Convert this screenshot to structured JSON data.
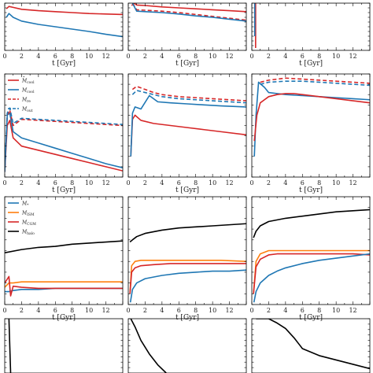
{
  "figure": {
    "xlabel_text": "t [Gyr]"
  },
  "colors": {
    "red": "#d62728",
    "blue": "#1f77b4",
    "orange": "#ff7f0e",
    "black": "#000000"
  },
  "chart_data": [
    {
      "type": "line",
      "panel": "r0c0",
      "xlim": [
        0,
        14
      ],
      "ylim": [
        0,
        1
      ],
      "xticks": [
        0,
        2,
        4,
        6,
        8,
        10,
        12
      ],
      "xlabel": "t [Gyr]",
      "series": [
        {
          "color": "red",
          "style": "solid",
          "x": [
            0.2,
            0.5,
            1,
            2,
            4,
            6,
            8,
            10,
            12,
            14
          ],
          "y": [
            0.88,
            0.93,
            0.91,
            0.87,
            0.84,
            0.82,
            0.8,
            0.78,
            0.77,
            0.76
          ]
        },
        {
          "color": "blue",
          "style": "solid",
          "x": [
            0.2,
            0.5,
            1,
            2,
            4,
            6,
            8,
            10,
            12,
            14
          ],
          "y": [
            0.7,
            0.78,
            0.7,
            0.62,
            0.55,
            0.5,
            0.45,
            0.4,
            0.34,
            0.29
          ]
        }
      ]
    },
    {
      "type": "line",
      "panel": "r0c1",
      "xlim": [
        0,
        14
      ],
      "ylim": [
        0,
        1
      ],
      "xticks": [
        0,
        2,
        4,
        6,
        8,
        10,
        12
      ],
      "xlabel": "t [Gyr]",
      "series": [
        {
          "color": "red",
          "style": "solid",
          "x": [
            0.4,
            0.7,
            1,
            2,
            4,
            6,
            8,
            10,
            12,
            14
          ],
          "y": [
            0.95,
            1.0,
            0.96,
            0.95,
            0.92,
            0.9,
            0.88,
            0.86,
            0.84,
            0.82
          ]
        },
        {
          "color": "red",
          "style": "dashed",
          "x": [
            0.5,
            1,
            2,
            4,
            6,
            8,
            10,
            12,
            14
          ],
          "y": [
            1.0,
            0.86,
            0.85,
            0.83,
            0.8,
            0.76,
            0.72,
            0.68,
            0.64
          ]
        },
        {
          "color": "blue",
          "style": "solid",
          "x": [
            0.5,
            1,
            2,
            4,
            6,
            8,
            10,
            12,
            14
          ],
          "y": [
            1.0,
            0.83,
            0.82,
            0.8,
            0.77,
            0.73,
            0.7,
            0.66,
            0.62
          ]
        }
      ]
    },
    {
      "type": "line",
      "panel": "r0c2",
      "xlim": [
        0,
        14
      ],
      "ylim": [
        0,
        1
      ],
      "xticks": [
        0,
        2,
        4,
        6,
        8,
        10,
        12
      ],
      "xlabel": "t [Gyr]",
      "series": [
        {
          "color": "red",
          "style": "solid",
          "x": [
            0.45,
            0.45
          ],
          "y": [
            0.05,
            1.0
          ]
        },
        {
          "color": "blue",
          "style": "solid",
          "x": [
            0.35,
            0.35
          ],
          "y": [
            0.3,
            1.0
          ]
        }
      ]
    },
    {
      "type": "line",
      "panel": "r1c0",
      "xlim": [
        0,
        14
      ],
      "ylim": [
        0,
        1
      ],
      "xticks": [
        0,
        2,
        4,
        6,
        8,
        10,
        12
      ],
      "xlabel": "t [Gyr]",
      "legend": [
        "M_cool (dot)",
        "M_cool",
        "M_re",
        "M_out"
      ],
      "series": [
        {
          "color": "red",
          "style": "solid",
          "name": "M_cool (dot)",
          "x": [
            0,
            0.3,
            0.6,
            1,
            2,
            4,
            6,
            8,
            10,
            12,
            14
          ],
          "y": [
            0.05,
            0.5,
            0.55,
            0.38,
            0.3,
            0.26,
            0.22,
            0.18,
            0.14,
            0.1,
            0.06
          ]
        },
        {
          "color": "blue",
          "style": "solid",
          "name": "M_cool",
          "x": [
            0,
            0.3,
            0.6,
            1,
            2,
            4,
            6,
            8,
            10,
            12,
            14
          ],
          "y": [
            0.05,
            0.6,
            0.62,
            0.44,
            0.38,
            0.33,
            0.28,
            0.23,
            0.18,
            0.13,
            0.09
          ]
        },
        {
          "color": "red",
          "style": "dashed",
          "name": "M_re",
          "x": [
            0,
            0.3,
            0.6,
            1,
            2,
            4,
            6,
            8,
            10,
            12,
            14
          ],
          "y": [
            0.05,
            0.6,
            0.65,
            0.5,
            0.56,
            0.55,
            0.54,
            0.53,
            0.52,
            0.51,
            0.5
          ]
        },
        {
          "color": "blue",
          "style": "dashed",
          "name": "M_out",
          "x": [
            0,
            0.3,
            0.6,
            1,
            2,
            4,
            6,
            8,
            10,
            12,
            14
          ],
          "y": [
            0.05,
            0.62,
            0.67,
            0.52,
            0.57,
            0.56,
            0.55,
            0.54,
            0.53,
            0.52,
            0.51
          ]
        }
      ]
    },
    {
      "type": "line",
      "panel": "r1c1",
      "xlim": [
        0,
        14
      ],
      "ylim": [
        0,
        1
      ],
      "xticks": [
        0,
        2,
        4,
        6,
        8,
        10,
        12
      ],
      "xlabel": "t [Gyr]",
      "series": [
        {
          "color": "red",
          "style": "solid",
          "x": [
            0.3,
            0.5,
            0.8,
            1.5,
            3,
            5,
            7,
            9,
            11,
            14
          ],
          "y": [
            0.2,
            0.56,
            0.6,
            0.55,
            0.52,
            0.5,
            0.48,
            0.46,
            0.44,
            0.41
          ]
        },
        {
          "color": "blue",
          "style": "solid",
          "x": [
            0.3,
            0.5,
            0.8,
            1.5,
            2.5,
            3.5,
            5,
            7,
            9,
            11,
            14
          ],
          "y": [
            0.2,
            0.62,
            0.68,
            0.66,
            0.79,
            0.73,
            0.72,
            0.71,
            0.7,
            0.69,
            0.68
          ]
        },
        {
          "color": "red",
          "style": "dashed",
          "x": [
            0.5,
            1,
            2,
            3,
            4,
            6,
            8,
            10,
            12,
            14
          ],
          "y": [
            0.85,
            0.88,
            0.85,
            0.82,
            0.8,
            0.78,
            0.77,
            0.76,
            0.75,
            0.74
          ]
        },
        {
          "color": "blue",
          "style": "dashed",
          "x": [
            0.5,
            1,
            2,
            3,
            4,
            6,
            8,
            10,
            12,
            14
          ],
          "y": [
            0.8,
            0.84,
            0.82,
            0.8,
            0.78,
            0.76,
            0.75,
            0.74,
            0.73,
            0.72
          ]
        }
      ]
    },
    {
      "type": "line",
      "panel": "r1c2",
      "xlim": [
        0,
        14
      ],
      "ylim": [
        0,
        1
      ],
      "xticks": [
        0,
        2,
        4,
        6,
        8,
        10,
        12
      ],
      "xlabel": "t [Gyr]",
      "series": [
        {
          "color": "blue",
          "style": "solid",
          "x": [
            0.3,
            0.5,
            0.8,
            1.5,
            2,
            3,
            4,
            6,
            8,
            10,
            12,
            14
          ],
          "y": [
            0.2,
            0.6,
            0.92,
            0.87,
            0.82,
            0.81,
            0.8,
            0.79,
            0.78,
            0.77,
            0.76,
            0.75
          ]
        },
        {
          "color": "red",
          "style": "solid",
          "x": [
            0.3,
            0.6,
            1,
            2,
            3,
            4,
            5,
            6,
            8,
            10,
            12,
            14
          ],
          "y": [
            0.35,
            0.6,
            0.72,
            0.78,
            0.8,
            0.81,
            0.81,
            0.8,
            0.78,
            0.76,
            0.74,
            0.72
          ]
        },
        {
          "color": "red",
          "style": "dashed",
          "x": [
            1,
            2,
            4,
            6,
            8,
            10,
            12,
            14
          ],
          "y": [
            0.92,
            0.94,
            0.96,
            0.95,
            0.94,
            0.93,
            0.92,
            0.91
          ]
        },
        {
          "color": "blue",
          "style": "dashed",
          "x": [
            1,
            2,
            4,
            6,
            8,
            10,
            12,
            14
          ],
          "y": [
            0.9,
            0.92,
            0.93,
            0.93,
            0.92,
            0.91,
            0.9,
            0.89
          ]
        }
      ]
    },
    {
      "type": "line",
      "panel": "r2c0",
      "xlim": [
        0,
        14
      ],
      "ylim": [
        0,
        1
      ],
      "xticks": [
        0,
        2,
        4,
        6,
        8,
        10,
        12
      ],
      "xlabel": "t [Gyr]",
      "legend": [
        "M_*",
        "M_ISM",
        "M_CGM",
        "M_halo"
      ],
      "series": [
        {
          "color": "blue",
          "style": "solid",
          "name": "M_*",
          "x": [
            0,
            0.5,
            1,
            2,
            4,
            6,
            8,
            10,
            12,
            14
          ],
          "y": [
            0.12,
            0.12,
            0.13,
            0.14,
            0.14,
            0.15,
            0.15,
            0.15,
            0.15,
            0.15
          ]
        },
        {
          "color": "orange",
          "style": "solid",
          "name": "M_ISM",
          "x": [
            0,
            0.5,
            1,
            2,
            4,
            6,
            8,
            10,
            12,
            14
          ],
          "y": [
            0.16,
            0.2,
            0.2,
            0.21,
            0.21,
            0.21,
            0.21,
            0.21,
            0.21,
            0.21
          ]
        },
        {
          "color": "red",
          "style": "solid",
          "name": "M_CGM",
          "x": [
            0,
            0.5,
            0.7,
            1,
            2,
            4,
            6,
            8,
            10,
            12,
            14
          ],
          "y": [
            0.2,
            0.26,
            0.08,
            0.17,
            0.16,
            0.15,
            0.15,
            0.15,
            0.15,
            0.15,
            0.15
          ]
        },
        {
          "color": "black",
          "style": "solid",
          "name": "M_halo",
          "x": [
            0,
            2,
            4,
            6,
            8,
            10,
            12,
            14
          ],
          "y": [
            0.48,
            0.51,
            0.53,
            0.54,
            0.56,
            0.57,
            0.58,
            0.59
          ]
        }
      ]
    },
    {
      "type": "line",
      "panel": "r2c1",
      "xlim": [
        0,
        14
      ],
      "ylim": [
        0,
        1
      ],
      "xticks": [
        0,
        2,
        4,
        6,
        8,
        10,
        12
      ],
      "xlabel": "t [Gyr]",
      "series": [
        {
          "color": "black",
          "style": "solid",
          "x": [
            0.2,
            0.5,
            1,
            2,
            4,
            6,
            8,
            10,
            12,
            14
          ],
          "y": [
            0.58,
            0.6,
            0.63,
            0.66,
            0.69,
            0.71,
            0.72,
            0.73,
            0.74,
            0.75
          ]
        },
        {
          "color": "orange",
          "style": "solid",
          "x": [
            0.2,
            0.4,
            0.8,
            1.5,
            3,
            5,
            8,
            11,
            14
          ],
          "y": [
            0.1,
            0.36,
            0.4,
            0.41,
            0.41,
            0.41,
            0.41,
            0.41,
            0.4
          ]
        },
        {
          "color": "red",
          "style": "solid",
          "x": [
            0.2,
            0.4,
            0.8,
            1.5,
            3,
            5,
            8,
            11,
            14
          ],
          "y": [
            0.1,
            0.3,
            0.34,
            0.36,
            0.37,
            0.38,
            0.38,
            0.38,
            0.38
          ]
        },
        {
          "color": "blue",
          "style": "solid",
          "x": [
            0.25,
            0.5,
            1,
            2,
            4,
            6,
            8,
            10,
            12,
            14
          ],
          "y": [
            0.02,
            0.14,
            0.2,
            0.24,
            0.27,
            0.29,
            0.3,
            0.31,
            0.31,
            0.32
          ]
        }
      ]
    },
    {
      "type": "line",
      "panel": "r2c2",
      "xlim": [
        0,
        14
      ],
      "ylim": [
        0,
        1
      ],
      "xticks": [
        0,
        2,
        4,
        6,
        8,
        10,
        12
      ],
      "xlabel": "t [Gyr]",
      "series": [
        {
          "color": "black",
          "style": "solid",
          "x": [
            0.2,
            0.5,
            1,
            2,
            4,
            6,
            8,
            10,
            12,
            14
          ],
          "y": [
            0.62,
            0.68,
            0.73,
            0.77,
            0.8,
            0.82,
            0.84,
            0.86,
            0.87,
            0.88
          ]
        },
        {
          "color": "orange",
          "style": "solid",
          "x": [
            0.2,
            0.5,
            1,
            2,
            3,
            4,
            6,
            8,
            10,
            12,
            14
          ],
          "y": [
            0.1,
            0.4,
            0.47,
            0.5,
            0.5,
            0.5,
            0.5,
            0.5,
            0.5,
            0.5,
            0.5
          ]
        },
        {
          "color": "red",
          "style": "solid",
          "x": [
            0.2,
            0.5,
            1,
            2,
            3,
            4,
            6,
            8,
            10,
            12,
            14
          ],
          "y": [
            0.1,
            0.35,
            0.42,
            0.46,
            0.47,
            0.47,
            0.47,
            0.47,
            0.47,
            0.47,
            0.46
          ]
        },
        {
          "color": "blue",
          "style": "solid",
          "x": [
            0.25,
            0.5,
            1,
            2,
            3,
            4,
            6,
            8,
            10,
            12,
            14
          ],
          "y": [
            0.02,
            0.12,
            0.2,
            0.27,
            0.31,
            0.34,
            0.38,
            0.41,
            0.43,
            0.45,
            0.47
          ]
        }
      ]
    },
    {
      "type": "line",
      "panel": "r3c0",
      "xlim": [
        0,
        14
      ],
      "ylim": [
        0,
        1
      ],
      "series": [
        {
          "color": "black",
          "style": "solid",
          "x": [
            0.5,
            0.6,
            0.7
          ],
          "y": [
            1.0,
            0.5,
            0.0
          ]
        }
      ]
    },
    {
      "type": "line",
      "panel": "r3c1",
      "xlim": [
        0,
        14
      ],
      "ylim": [
        0,
        1
      ],
      "series": [
        {
          "color": "black",
          "style": "solid",
          "x": [
            0.3,
            0.8,
            1.5,
            2.5,
            3.5,
            4.5
          ],
          "y": [
            1.0,
            0.85,
            0.6,
            0.35,
            0.15,
            0.0
          ]
        }
      ]
    },
    {
      "type": "line",
      "panel": "r3c2",
      "xlim": [
        0,
        14
      ],
      "ylim": [
        0,
        1
      ],
      "series": [
        {
          "color": "black",
          "style": "solid",
          "x": [
            0.5,
            2,
            3,
            4,
            5,
            6,
            8,
            11,
            14
          ],
          "y": [
            1.0,
            1.0,
            0.92,
            0.82,
            0.65,
            0.45,
            0.32,
            0.2,
            0.08
          ]
        }
      ]
    }
  ]
}
